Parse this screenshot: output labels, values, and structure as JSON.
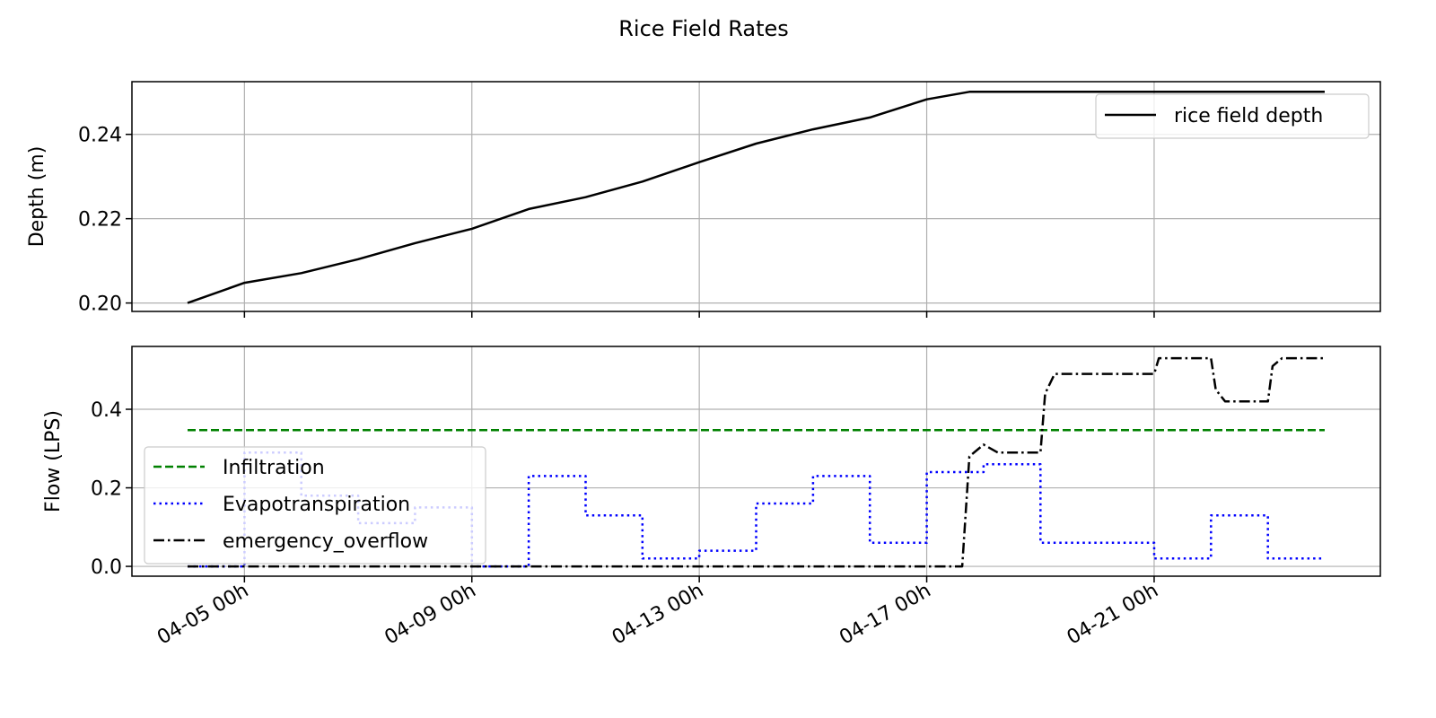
{
  "chart_data": {
    "title": "Rice Field Rates",
    "x_tick_labels": [
      "04-05 00h",
      "04-09 00h",
      "04-13 00h",
      "04-17 00h",
      "04-21 00h"
    ],
    "panels": [
      {
        "type": "line",
        "ylabel": "Depth (m)",
        "ylim": [
          0.198,
          0.2525
        ],
        "yticks": [
          "0.20",
          "0.22",
          "0.24"
        ],
        "grid": true,
        "legend_position": "top-right",
        "series": [
          {
            "name": "rice field depth",
            "color": "#000000",
            "linestyle": "solid",
            "x": [
              "04-04 00h",
              "04-05 00h",
              "04-06 00h",
              "04-07 00h",
              "04-08 00h",
              "04-09 00h",
              "04-10 00h",
              "04-11 00h",
              "04-12 00h",
              "04-13 00h",
              "04-14 00h",
              "04-15 00h",
              "04-16 00h",
              "04-17 00h",
              "04-17 18h",
              "04-19 00h",
              "04-24 00h"
            ],
            "y": [
              0.2,
              0.2048,
              0.2071,
              0.2104,
              0.2142,
              0.2176,
              0.2223,
              0.2251,
              0.2288,
              0.2334,
              0.2378,
              0.2412,
              0.244,
              0.2483,
              0.2501,
              0.2501,
              0.2501
            ]
          }
        ]
      },
      {
        "type": "line",
        "ylabel": "Flow (LPS)",
        "ylim": [
          -0.025,
          0.56
        ],
        "yticks": [
          "0.0",
          "0.2",
          "0.4"
        ],
        "grid": true,
        "legend_position": "bottom-left",
        "series": [
          {
            "name": "Infiltration",
            "color": "#008000",
            "linestyle": "dashed",
            "x": [
              "04-04 00h",
              "04-24 00h"
            ],
            "y": [
              0.347,
              0.347
            ]
          },
          {
            "name": "Evapotranspiration",
            "color": "#0000ff",
            "linestyle": "dotted",
            "x": [
              "04-04 00h",
              "04-05 00h",
              "04-05 00h",
              "04-06 00h",
              "04-06 00h",
              "04-07 00h",
              "04-07 00h",
              "04-08 00h",
              "04-08 00h",
              "04-09 00h",
              "04-09 00h",
              "04-10 00h",
              "04-10 00h",
              "04-11 00h",
              "04-11 00h",
              "04-12 00h",
              "04-12 00h",
              "04-13 00h",
              "04-13 00h",
              "04-14 00h",
              "04-14 00h",
              "04-15 00h",
              "04-15 00h",
              "04-16 00h",
              "04-16 00h",
              "04-17 00h",
              "04-17 00h",
              "04-18 00h",
              "04-18 00h",
              "04-19 00h",
              "04-19 00h",
              "04-20 00h",
              "04-20 00h",
              "04-21 00h",
              "04-21 00h",
              "04-22 00h",
              "04-22 00h",
              "04-23 00h",
              "04-23 00h",
              "04-24 00h"
            ],
            "y": [
              0.0,
              0.0,
              0.29,
              0.29,
              0.18,
              0.18,
              0.11,
              0.11,
              0.15,
              0.15,
              0.0,
              0.0,
              0.23,
              0.23,
              0.13,
              0.13,
              0.02,
              0.02,
              0.04,
              0.04,
              0.16,
              0.16,
              0.23,
              0.23,
              0.06,
              0.06,
              0.24,
              0.24,
              0.26,
              0.26,
              0.06,
              0.06,
              0.06,
              0.06,
              0.02,
              0.02,
              0.13,
              0.13,
              0.02,
              0.02
            ]
          },
          {
            "name": "emergency_overflow",
            "color": "#000000",
            "linestyle": "dashdot",
            "x": [
              "04-04 00h",
              "04-17 15h",
              "04-17 18h",
              "04-18 00h",
              "04-18 06h",
              "04-19 00h",
              "04-19 02h",
              "04-19 06h",
              "04-21 00h",
              "04-21 02h",
              "04-22 00h",
              "04-22 02h",
              "04-22 06h",
              "04-23 00h",
              "04-23 02h",
              "04-23 06h",
              "04-24 00h"
            ],
            "y": [
              0.0,
              0.0,
              0.28,
              0.31,
              0.29,
              0.29,
              0.44,
              0.49,
              0.49,
              0.53,
              0.53,
              0.45,
              0.42,
              0.42,
              0.51,
              0.53,
              0.53
            ]
          }
        ]
      }
    ]
  }
}
